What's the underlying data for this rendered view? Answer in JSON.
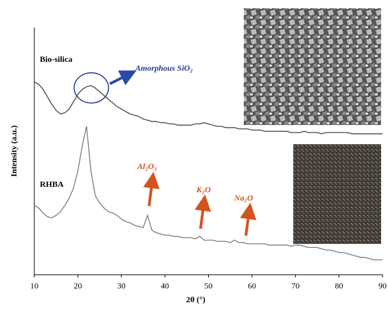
{
  "chart_data": {
    "type": "line",
    "xlabel": "2θ (°)",
    "ylabel": "Intensity (a.u.)",
    "xlim": [
      10,
      90
    ],
    "xticks": [
      10,
      20,
      30,
      40,
      50,
      60,
      70,
      80,
      90
    ],
    "ylim": [
      0,
      100
    ],
    "annotations": [
      "Amorphous SiO₂",
      "Al₂O₃",
      "K₂O",
      "Na₂O"
    ],
    "x": [
      10,
      11,
      12,
      13,
      14,
      15,
      16,
      17,
      18,
      19,
      20,
      21,
      22,
      23,
      24,
      25,
      26,
      27,
      28,
      29,
      30,
      31,
      32,
      33,
      34,
      35,
      36,
      37,
      38,
      39,
      40,
      41,
      42,
      43,
      44,
      45,
      46,
      47,
      48,
      49,
      50,
      51,
      52,
      53,
      54,
      55,
      56,
      57,
      58,
      59,
      60,
      61,
      62,
      63,
      64,
      65,
      66,
      67,
      68,
      69,
      70,
      71,
      72,
      73,
      74,
      75,
      76,
      77,
      78,
      79,
      80,
      81,
      82,
      83,
      84,
      85,
      86,
      87,
      88,
      89,
      90
    ],
    "series": [
      {
        "name": "Bio-silica",
        "color": "#444444",
        "values": [
          78,
          77,
          75,
          72,
          69,
          66.5,
          65,
          65.5,
          67,
          70,
          73,
          75,
          76,
          76.5,
          75.5,
          74,
          72.5,
          71,
          69.5,
          68,
          67,
          66,
          65,
          64.5,
          64,
          63,
          62.5,
          62,
          62,
          61.5,
          61.5,
          61,
          61,
          60.5,
          60.5,
          60.5,
          60.5,
          61,
          61,
          61.5,
          61,
          60.5,
          60,
          60,
          59.5,
          59.5,
          59.5,
          59,
          59,
          59,
          58.5,
          58.5,
          58.5,
          58,
          58,
          58,
          58,
          58,
          58,
          57.5,
          57.5,
          57.5,
          58,
          57.5,
          57.5,
          57.5,
          57,
          57.5,
          57.5,
          57.5,
          57.5,
          57.5,
          57.5,
          57,
          57,
          57,
          57,
          57,
          57,
          57,
          57
        ]
      },
      {
        "name": "RHBA",
        "color": "#7a7a7a",
        "values": [
          28,
          27,
          25,
          23.5,
          23,
          24,
          25.5,
          28,
          31,
          35,
          42,
          52,
          60,
          42,
          32,
          29,
          27,
          25.5,
          25,
          24,
          22.5,
          21.5,
          21,
          20,
          19.5,
          19,
          24,
          18,
          17,
          16.5,
          16,
          16,
          15.5,
          15.5,
          15,
          15,
          15,
          14.5,
          15.5,
          14,
          14,
          14,
          13.5,
          13.5,
          13.5,
          13,
          14,
          13,
          13,
          12.5,
          12.5,
          12.5,
          12.5,
          12.5,
          12,
          12,
          12,
          12,
          12,
          11.5,
          12,
          12,
          11.5,
          11,
          11,
          11,
          10.5,
          10,
          10,
          9.5,
          9,
          9,
          8.5,
          8,
          7.5,
          7,
          7,
          6.5,
          6,
          6,
          6
        ]
      }
    ]
  }
}
